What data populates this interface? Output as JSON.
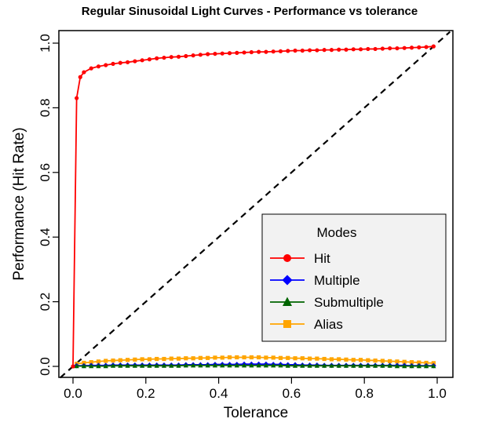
{
  "chart_data": {
    "type": "line",
    "title": "Regular Sinusoidal Light Curves - Performance vs tolerance",
    "xlabel": "Tolerance",
    "ylabel": "Performance (Hit Rate)",
    "xlim": [
      0.0,
      1.0
    ],
    "ylim": [
      0.0,
      1.0
    ],
    "xticks": [
      "0.0",
      "0.2",
      "0.4",
      "0.6",
      "0.8",
      "1.0"
    ],
    "yticks": [
      "0.0",
      "0.2",
      "0.4",
      "0.6",
      "0.8",
      "1.0"
    ],
    "grid": false,
    "legend": {
      "title": "Modes",
      "placement": "bottom-right"
    },
    "reference_line": {
      "from": [
        0,
        0
      ],
      "to": [
        1,
        1
      ],
      "style": "dashed",
      "color": "#000000"
    },
    "series": [
      {
        "name": "Hit",
        "color": "#ff0000",
        "marker": "circle",
        "x": [
          0,
          0.01,
          0.02,
          0.03,
          0.05,
          0.07,
          0.09,
          0.11,
          0.13,
          0.15,
          0.17,
          0.19,
          0.21,
          0.23,
          0.25,
          0.27,
          0.29,
          0.31,
          0.33,
          0.35,
          0.37,
          0.39,
          0.41,
          0.43,
          0.45,
          0.47,
          0.49,
          0.51,
          0.53,
          0.55,
          0.57,
          0.59,
          0.61,
          0.63,
          0.65,
          0.67,
          0.69,
          0.71,
          0.73,
          0.75,
          0.77,
          0.79,
          0.81,
          0.83,
          0.85,
          0.87,
          0.89,
          0.91,
          0.93,
          0.95,
          0.97,
          0.99
        ],
        "values": [
          0,
          0.83,
          0.895,
          0.91,
          0.922,
          0.928,
          0.932,
          0.936,
          0.939,
          0.941,
          0.944,
          0.947,
          0.95,
          0.953,
          0.955,
          0.957,
          0.958,
          0.96,
          0.962,
          0.964,
          0.966,
          0.967,
          0.968,
          0.969,
          0.97,
          0.971,
          0.972,
          0.973,
          0.973,
          0.974,
          0.975,
          0.976,
          0.977,
          0.977,
          0.978,
          0.978,
          0.979,
          0.979,
          0.98,
          0.98,
          0.981,
          0.981,
          0.982,
          0.982,
          0.983,
          0.984,
          0.984,
          0.985,
          0.986,
          0.987,
          0.988,
          0.99
        ]
      },
      {
        "name": "Multiple",
        "color": "#0000ff",
        "marker": "diamond",
        "x": [
          0.01,
          0.03,
          0.05,
          0.07,
          0.09,
          0.11,
          0.13,
          0.15,
          0.17,
          0.19,
          0.21,
          0.23,
          0.25,
          0.27,
          0.29,
          0.31,
          0.33,
          0.35,
          0.37,
          0.39,
          0.41,
          0.43,
          0.45,
          0.47,
          0.49,
          0.51,
          0.53,
          0.55,
          0.57,
          0.59,
          0.61,
          0.63,
          0.65,
          0.67,
          0.69,
          0.71,
          0.73,
          0.75,
          0.77,
          0.79,
          0.81,
          0.83,
          0.85,
          0.87,
          0.89,
          0.91,
          0.93,
          0.95,
          0.97,
          0.99
        ],
        "values": [
          0.002,
          0.002,
          0.003,
          0.003,
          0.003,
          0.004,
          0.004,
          0.004,
          0.004,
          0.004,
          0.004,
          0.004,
          0.004,
          0.004,
          0.004,
          0.005,
          0.005,
          0.005,
          0.005,
          0.006,
          0.006,
          0.006,
          0.006,
          0.007,
          0.007,
          0.007,
          0.007,
          0.006,
          0.006,
          0.005,
          0.005,
          0.004,
          0.004,
          0.004,
          0.003,
          0.003,
          0.003,
          0.003,
          0.003,
          0.003,
          0.003,
          0.003,
          0.003,
          0.003,
          0.003,
          0.003,
          0.002,
          0.002,
          0.002,
          0.002
        ]
      },
      {
        "name": "Submultiple",
        "color": "#006400",
        "marker": "triangle",
        "x": [
          0.01,
          0.03,
          0.05,
          0.07,
          0.09,
          0.11,
          0.13,
          0.15,
          0.17,
          0.19,
          0.21,
          0.23,
          0.25,
          0.27,
          0.29,
          0.31,
          0.33,
          0.35,
          0.37,
          0.39,
          0.41,
          0.43,
          0.45,
          0.47,
          0.49,
          0.51,
          0.53,
          0.55,
          0.57,
          0.59,
          0.61,
          0.63,
          0.65,
          0.67,
          0.69,
          0.71,
          0.73,
          0.75,
          0.77,
          0.79,
          0.81,
          0.83,
          0.85,
          0.87,
          0.89,
          0.91,
          0.93,
          0.95,
          0.97,
          0.99
        ],
        "values": [
          0.001,
          0.001,
          0.001,
          0.001,
          0.001,
          0.002,
          0.002,
          0.002,
          0.002,
          0.002,
          0.002,
          0.002,
          0.002,
          0.002,
          0.002,
          0.003,
          0.003,
          0.003,
          0.003,
          0.003,
          0.003,
          0.003,
          0.003,
          0.003,
          0.003,
          0.003,
          0.003,
          0.003,
          0.003,
          0.002,
          0.002,
          0.002,
          0.002,
          0.002,
          0.002,
          0.002,
          0.002,
          0.002,
          0.002,
          0.002,
          0.002,
          0.002,
          0.002,
          0.002,
          0.001,
          0.001,
          0.001,
          0.001,
          0.001,
          0.001
        ]
      },
      {
        "name": "Alias",
        "color": "#ffa500",
        "marker": "square",
        "x": [
          0.01,
          0.03,
          0.05,
          0.07,
          0.09,
          0.11,
          0.13,
          0.15,
          0.17,
          0.19,
          0.21,
          0.23,
          0.25,
          0.27,
          0.29,
          0.31,
          0.33,
          0.35,
          0.37,
          0.39,
          0.41,
          0.43,
          0.45,
          0.47,
          0.49,
          0.51,
          0.53,
          0.55,
          0.57,
          0.59,
          0.61,
          0.63,
          0.65,
          0.67,
          0.69,
          0.71,
          0.73,
          0.75,
          0.77,
          0.79,
          0.81,
          0.83,
          0.85,
          0.87,
          0.89,
          0.91,
          0.93,
          0.95,
          0.97,
          0.99
        ],
        "values": [
          0.008,
          0.011,
          0.013,
          0.015,
          0.017,
          0.018,
          0.019,
          0.02,
          0.021,
          0.022,
          0.022,
          0.023,
          0.023,
          0.024,
          0.024,
          0.025,
          0.025,
          0.026,
          0.026,
          0.027,
          0.027,
          0.028,
          0.028,
          0.028,
          0.028,
          0.028,
          0.027,
          0.027,
          0.026,
          0.026,
          0.025,
          0.025,
          0.024,
          0.024,
          0.023,
          0.022,
          0.022,
          0.021,
          0.02,
          0.02,
          0.019,
          0.018,
          0.017,
          0.016,
          0.015,
          0.014,
          0.013,
          0.012,
          0.011,
          0.01
        ]
      }
    ]
  }
}
